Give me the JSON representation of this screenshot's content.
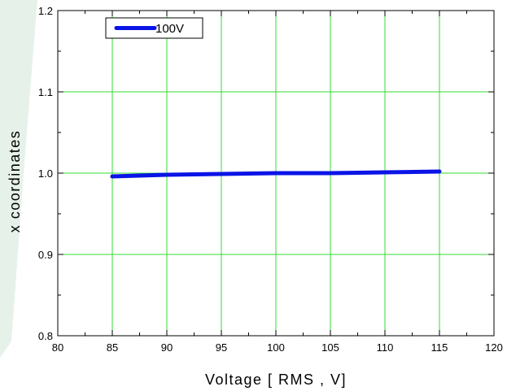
{
  "chart_data": {
    "type": "line",
    "xlabel": "Voltage [ RMS , V]",
    "ylabel": "x coordinates",
    "xlim": [
      80,
      120
    ],
    "ylim": [
      0.8,
      1.2
    ],
    "x_ticks": [
      80,
      85,
      90,
      95,
      100,
      105,
      110,
      115,
      120
    ],
    "y_ticks": [
      0.8,
      0.9,
      1.0,
      1.1,
      1.2
    ],
    "x_tick_labels": [
      "80",
      "85",
      "90",
      "95",
      "100",
      "105",
      "110",
      "115",
      "120"
    ],
    "y_tick_labels": [
      "0.8",
      "0.9",
      "1.0",
      "1.1",
      "1.2"
    ],
    "grid": true,
    "grid_color": "#33dd33",
    "legend_position": "top-left",
    "series": [
      {
        "name": "100V",
        "color": "#0a14e6",
        "x": [
          85,
          90,
          95,
          100,
          105,
          110,
          115
        ],
        "y": [
          0.996,
          0.998,
          0.999,
          1.0,
          1.0,
          1.001,
          1.002
        ]
      }
    ]
  }
}
